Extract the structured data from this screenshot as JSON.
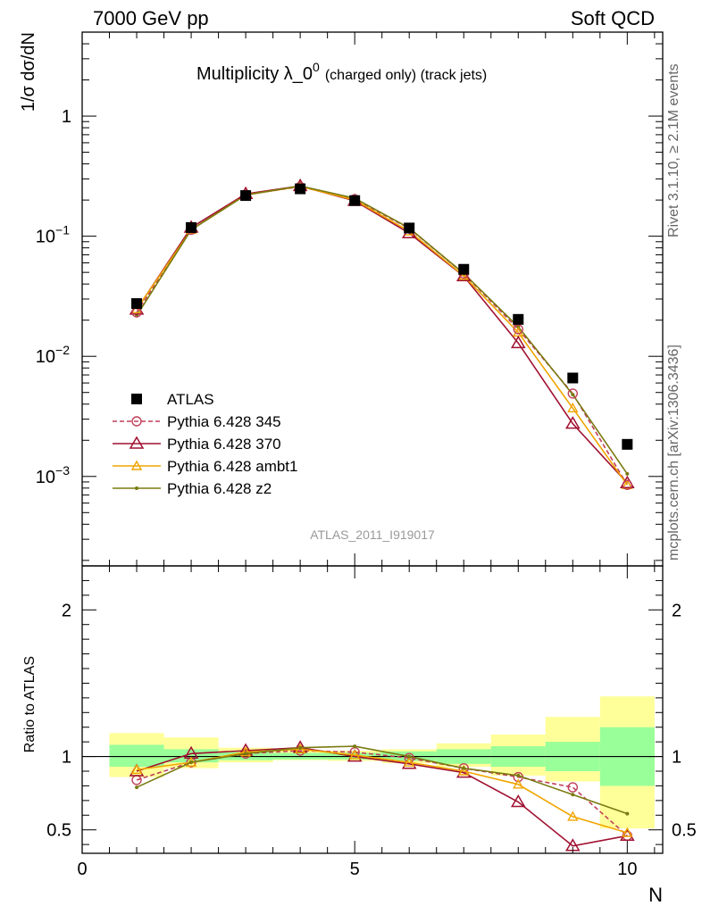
{
  "header": {
    "left": "7000 GeV pp",
    "right": "Soft QCD"
  },
  "side_labels": {
    "rivet": "Rivet 3.1.10, ≥ 2.1M events",
    "source": "mcplots.cern.ch [arXiv:1306.3436]"
  },
  "chart_data": [
    {
      "type": "line",
      "panel": "main",
      "title_main": "Multiplicity λ_0",
      "title_sup": "0",
      "title_small": "(charged only) (track jets)",
      "ylabel": "1/σ dσ/dN",
      "xlabel": "N",
      "xlim": [
        0,
        10.65
      ],
      "ylim": [
        0.00018,
        5
      ],
      "yscale": "log",
      "ytick_labels": [
        "1",
        "10⁻¹",
        "10⁻²",
        "10⁻³"
      ],
      "analysis_tag": "ATLAS_2011_I919017",
      "legend_position": "middle-left",
      "x": [
        1,
        2,
        3,
        4,
        5,
        6,
        7,
        8,
        9,
        10
      ],
      "series": [
        {
          "name": "ATLAS",
          "color": "#000000",
          "marker": "square",
          "style": "none",
          "values": [
            0.0275,
            0.118,
            0.218,
            0.248,
            0.198,
            0.117,
            0.053,
            0.0203,
            0.0066,
            0.00185
          ]
        },
        {
          "name": "Pythia 6.428 345",
          "color": "#c0405a",
          "marker": "open-circle",
          "style": "dashed",
          "values": [
            0.0232,
            0.113,
            0.222,
            0.258,
            0.203,
            0.116,
            0.0488,
            0.0168,
            0.0049,
            0.00085
          ]
        },
        {
          "name": "Pythia 6.428 370",
          "color": "#a01030",
          "marker": "open-triangle",
          "style": "solid",
          "values": [
            0.0245,
            0.118,
            0.225,
            0.262,
            0.197,
            0.106,
            0.0465,
            0.0129,
            0.00275,
            0.00088
          ]
        },
        {
          "name": "Pythia 6.428 ambt1",
          "color": "#f0a500",
          "marker": "open-triangle-small",
          "style": "solid",
          "values": [
            0.0247,
            0.113,
            0.221,
            0.26,
            0.2,
            0.11,
            0.0468,
            0.0158,
            0.0037,
            0.00085
          ]
        },
        {
          "name": "Pythia 6.428 z2",
          "color": "#7a7a10",
          "marker": "dot",
          "style": "solid",
          "values": [
            0.0218,
            0.113,
            0.22,
            0.262,
            0.207,
            0.117,
            0.049,
            0.0176,
            0.0048,
            0.00105
          ]
        }
      ]
    },
    {
      "type": "line",
      "panel": "ratio",
      "ylabel": "Ratio to ATLAS",
      "xlabel": "N",
      "xlim": [
        0,
        10.65
      ],
      "ylim": [
        0.34,
        2.3
      ],
      "ytick_labels": [
        "0.5",
        "1",
        "2"
      ],
      "xtick_labels": [
        "0",
        "5",
        "10"
      ],
      "x": [
        1,
        2,
        3,
        4,
        5,
        6,
        7,
        8,
        9,
        10
      ],
      "bands": {
        "bins": [
          0.5,
          1.5,
          2.5,
          3.5,
          4.5,
          5.5,
          6.5,
          7.5,
          8.5,
          9.5,
          10.5
        ],
        "green_lo": [
          0.93,
          0.96,
          0.975,
          0.98,
          0.98,
          0.97,
          0.95,
          0.93,
          0.9,
          0.8
        ],
        "green_hi": [
          1.08,
          1.05,
          1.03,
          1.025,
          1.025,
          1.035,
          1.05,
          1.07,
          1.1,
          1.2
        ],
        "yellow_lo": [
          0.86,
          0.92,
          0.96,
          0.975,
          0.97,
          0.955,
          0.93,
          0.87,
          0.83,
          0.51
        ],
        "yellow_hi": [
          1.16,
          1.13,
          1.06,
          1.04,
          1.04,
          1.05,
          1.09,
          1.15,
          1.27,
          1.41
        ]
      },
      "series": [
        {
          "name": "Pythia 6.428 345",
          "values": [
            0.84,
            0.96,
            1.02,
            1.04,
            1.03,
            0.99,
            0.92,
            0.86,
            0.79,
            0.46
          ]
        },
        {
          "name": "Pythia 6.428 370",
          "values": [
            0.9,
            1.02,
            1.04,
            1.06,
            1.0,
            0.95,
            0.89,
            0.69,
            0.39,
            0.46
          ]
        },
        {
          "name": "Pythia 6.428 ambt1",
          "values": [
            0.91,
            0.96,
            1.03,
            1.05,
            1.01,
            0.96,
            0.9,
            0.81,
            0.59,
            0.48
          ]
        },
        {
          "name": "Pythia 6.428 z2",
          "values": [
            0.79,
            0.96,
            1.02,
            1.06,
            1.07,
            1.0,
            0.92,
            0.87,
            0.74,
            0.61
          ]
        }
      ]
    }
  ]
}
